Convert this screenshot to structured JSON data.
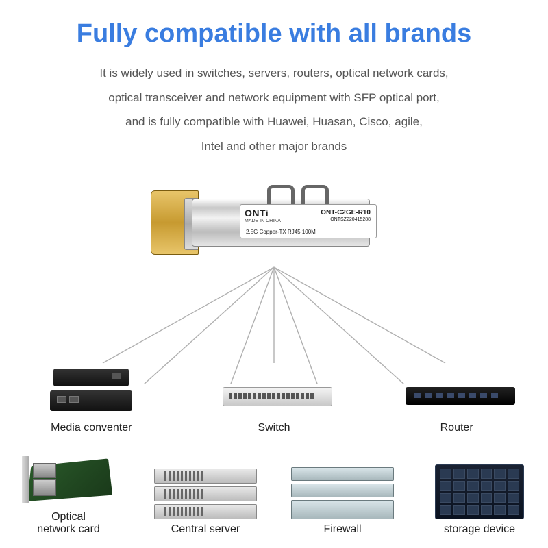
{
  "title": {
    "text": "Fully compatible with all brands",
    "color": "#3a7de0"
  },
  "description": {
    "line1": "It is widely used in switches, servers, routers, optical network cards,",
    "line2": "optical transceiver and network equipment with SFP optical port,",
    "line3": "and is fully compatible with Huawei, Huasan, Cisco, agile,",
    "line4": "Intel and other major brands",
    "color": "#555555"
  },
  "module_label": {
    "brand": "ONTi",
    "made": "MADE IN CHINA",
    "model": "ONT-C2GE-R10",
    "serial": "ONTSZ220415288",
    "spec": "2.5G Copper-TX RJ45 100M"
  },
  "lines": {
    "color": "#b0b0b0"
  },
  "devices": {
    "row1": [
      {
        "label": "Media conventer",
        "type": "mediaconv"
      },
      {
        "label": "Switch",
        "type": "switch"
      },
      {
        "label": "Router",
        "type": "router"
      }
    ],
    "row2": [
      {
        "label": "Optical\nnetwork card",
        "type": "optcard"
      },
      {
        "label": "Central server",
        "type": "cserver"
      },
      {
        "label": "Firewall",
        "type": "firewall"
      },
      {
        "label": "storage device",
        "type": "storage"
      }
    ]
  }
}
